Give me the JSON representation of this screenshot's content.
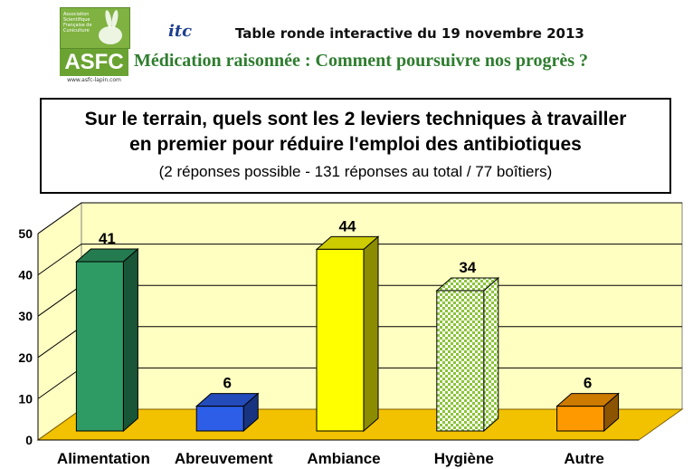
{
  "logo": {
    "name": "ASFC",
    "small_text": "Association Scientifique Française de Cuniculture",
    "url": "www.asfc-lapin.com"
  },
  "header": {
    "itc": "itc",
    "line1": "Table ronde interactive du 19 novembre 2013",
    "line2": "Médication raisonnée : Comment poursuivre nos progrès ?"
  },
  "title": {
    "line1": "Sur le terrain, quels sont les 2 leviers techniques à travailler",
    "line2": "en premier pour réduire l'emploi des antibiotiques",
    "line3": "(2 réponses possible - 131 réponses au total / 77 boîtiers)"
  },
  "colors": {
    "wall": "#ffffc2",
    "floor": "#f2c200",
    "bars": [
      "#2e9a64",
      "#2c5ee8",
      "#ffff00",
      "#b6e05a",
      "#ff9900"
    ]
  },
  "chart_data": {
    "type": "bar",
    "categories": [
      "Alimentation",
      "Abreuvement",
      "Ambiance",
      "Hygiène",
      "Autre"
    ],
    "values": [
      41,
      6,
      44,
      34,
      6
    ],
    "ylim": [
      0,
      50
    ],
    "yticks": [
      "0",
      "10",
      "20",
      "30",
      "40",
      "50"
    ],
    "grid": true,
    "three_d": true
  }
}
